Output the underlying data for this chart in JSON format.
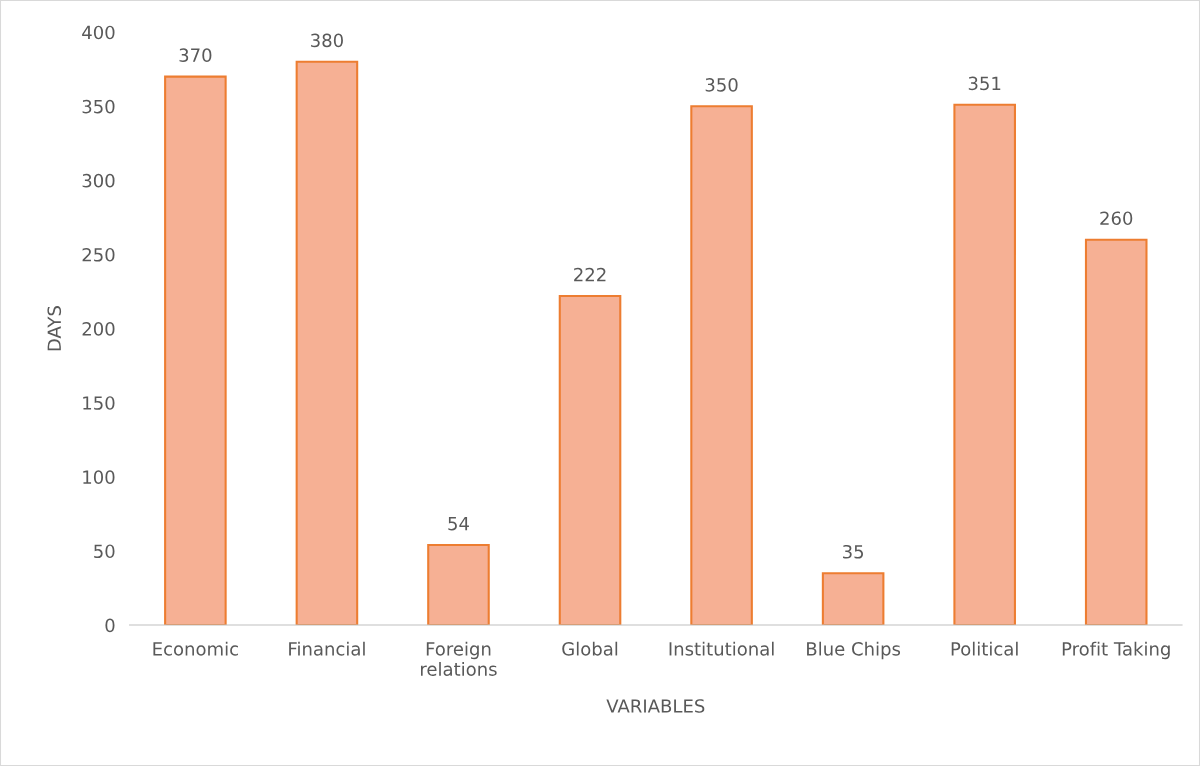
{
  "chart_data": {
    "type": "bar",
    "xlabel": "VARIABLES",
    "ylabel": "DAYS",
    "categories": [
      "Economic",
      "Financial",
      "Foreign\nrelations",
      "Global",
      "Institutional",
      "Blue Chips",
      "Political",
      "Profit Taking"
    ],
    "values": [
      370,
      380,
      54,
      222,
      350,
      35,
      351,
      260
    ],
    "color": "#f6b094",
    "ylim": [
      0,
      400
    ],
    "yticks": [
      0,
      50,
      100,
      150,
      200,
      250,
      300,
      350,
      400
    ],
    "data_labels": true,
    "grid": false,
    "legend": false
  }
}
